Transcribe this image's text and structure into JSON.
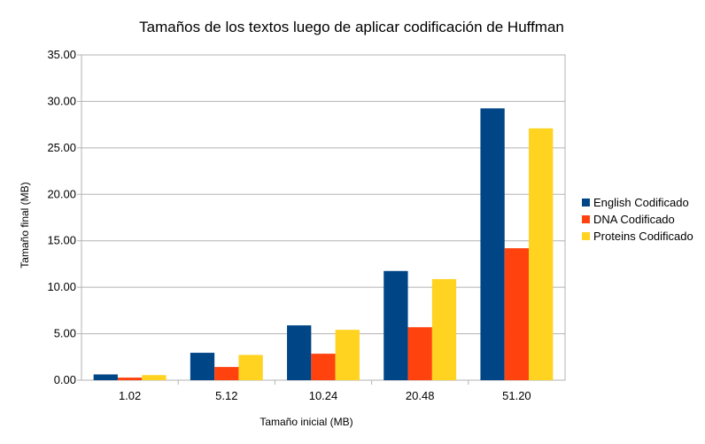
{
  "chart_data": {
    "type": "bar",
    "title": "Tamaños de los textos luego de aplicar codificación de Huffman",
    "xlabel": "Tamaño inicial (MB)",
    "ylabel": "Tamaño final (MB)",
    "categories": [
      "1.02",
      "5.12",
      "10.24",
      "20.48",
      "51.20"
    ],
    "series": [
      {
        "name": "English Codificado",
        "color": "#004586",
        "values": [
          0.62,
          2.95,
          5.9,
          11.75,
          29.25
        ]
      },
      {
        "name": "DNA Codificado",
        "color": "#ff420e",
        "values": [
          0.28,
          1.42,
          2.85,
          5.7,
          14.2
        ]
      },
      {
        "name": "Proteins Codificado",
        "color": "#ffd320",
        "values": [
          0.55,
          2.72,
          5.42,
          10.88,
          27.1
        ]
      }
    ],
    "ylim": [
      0,
      35
    ],
    "yticks": [
      "0.00",
      "5.00",
      "10.00",
      "15.00",
      "20.00",
      "25.00",
      "30.00",
      "35.00"
    ],
    "grid": true,
    "legend": "right"
  }
}
